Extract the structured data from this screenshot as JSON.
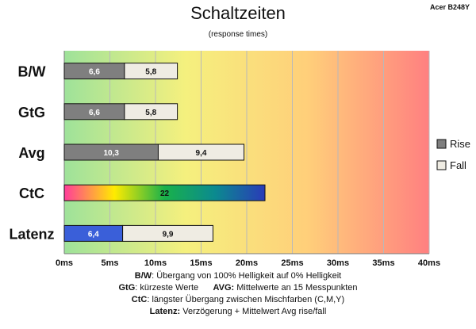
{
  "chart_data": {
    "type": "bar",
    "title": "Schaltzeiten",
    "subtitle": "(response times)",
    "model": "Acer B248Y",
    "categories": [
      "B/W",
      "GtG",
      "Avg",
      "CtC",
      "Latenz"
    ],
    "series": [
      {
        "name": "Rise",
        "values": [
          6.6,
          6.6,
          10.3,
          null,
          6.4
        ]
      },
      {
        "name": "Fall",
        "values": [
          5.8,
          5.8,
          9.4,
          null,
          9.9
        ]
      },
      {
        "name": "CtC",
        "values": [
          null,
          null,
          null,
          22,
          null
        ]
      }
    ],
    "data_labels": {
      "Rise": [
        "6,6",
        "6,6",
        "10,3",
        null,
        "6,4"
      ],
      "Fall": [
        "5,8",
        "5,8",
        "9,4",
        null,
        "9,9"
      ],
      "CtC": [
        null,
        null,
        null,
        "22",
        null
      ]
    },
    "x_ticks": [
      "0ms",
      "5ms",
      "10ms",
      "15ms",
      "20ms",
      "25ms",
      "30ms",
      "35ms",
      "40ms"
    ],
    "xlim": [
      0,
      40
    ],
    "stacked": true,
    "orientation": "horizontal",
    "grid": true,
    "legend_position": "right",
    "legend": [
      "Rise",
      "Fall"
    ],
    "colors": {
      "rise": "#7f7f7f",
      "fall": "#efece3",
      "latenz_rise": "#3a5fd9",
      "ctc_gradient": [
        "#ff3c9a",
        "#ffeb00",
        "#19b14a",
        "#0b8a8f",
        "#2a3bb8"
      ],
      "background_gradient": [
        "#9ee29a",
        "#f5f07e",
        "#ffcf7a",
        "#ff8080"
      ]
    }
  },
  "footer": {
    "line1_key": "B/W",
    "line1_text": ":  Übergang von 100% Helligkeit auf 0% Helligkeit",
    "line2_key_a": "GtG",
    "line2_text_a": ": kürzeste  Werte",
    "line2_key_b": "AVG:",
    "line2_text_b": " Mittelwerte  an 15 Messpunkten",
    "line3_key": "CtC",
    "line3_text": ": längster Übergang  zwischen Mischfarben  (C,M,Y)",
    "line4_key": "Latenz:",
    "line4_text": " Verzögerung  + Mittelwert  Avg rise/fall"
  }
}
